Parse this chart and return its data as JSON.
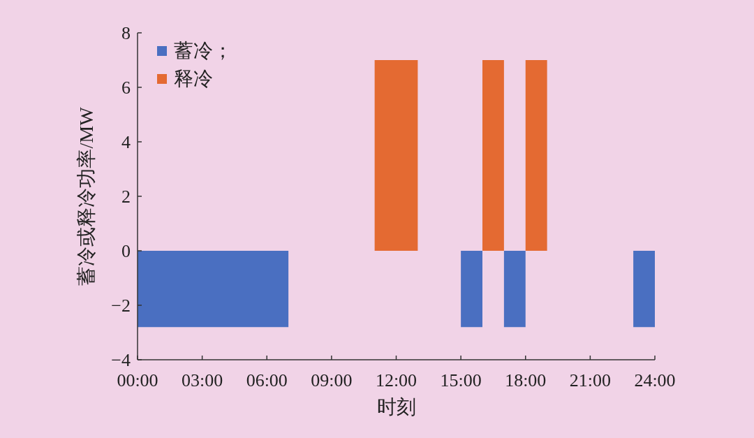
{
  "chart_data": {
    "type": "area",
    "xlabel": "时刻",
    "ylabel": "蓄冷或释冷功率/MW",
    "series": [
      {
        "name": "蓄冷；",
        "color": "#4a6fc1",
        "x": [
          0,
          7
        ],
        "values": [
          -2.8,
          -2.8
        ]
      },
      {
        "color": "#4a6fc1",
        "x": [
          15,
          16
        ],
        "values": [
          -2.8,
          -2.8
        ]
      },
      {
        "color": "#4a6fc1",
        "x": [
          17,
          18
        ],
        "values": [
          -2.8,
          -2.8
        ]
      },
      {
        "color": "#4a6fc1",
        "x": [
          23,
          24
        ],
        "values": [
          -2.8,
          -2.8
        ]
      },
      {
        "name": "释冷",
        "color": "#e46a32",
        "x": [
          11,
          13
        ],
        "values": [
          7,
          7
        ]
      },
      {
        "color": "#e46a32",
        "x": [
          16,
          17
        ],
        "values": [
          7,
          7
        ]
      },
      {
        "color": "#e46a32",
        "x": [
          18,
          19
        ],
        "values": [
          7,
          7
        ]
      }
    ],
    "xlim": [
      0,
      24
    ],
    "xticks": [
      {
        "value": 0,
        "label": "00:00"
      },
      {
        "value": 3,
        "label": "03:00"
      },
      {
        "value": 6,
        "label": "06:00"
      },
      {
        "value": 9,
        "label": "09:00"
      },
      {
        "value": 12,
        "label": "12:00"
      },
      {
        "value": 15,
        "label": "15:00"
      },
      {
        "value": 18,
        "label": "18:00"
      },
      {
        "value": 21,
        "label": "21:00"
      },
      {
        "value": 24,
        "label": "24:00"
      }
    ],
    "ylim": [
      -4,
      8
    ],
    "yticks": [
      -4,
      -2,
      0,
      2,
      4,
      6,
      8
    ],
    "legend": "top left"
  }
}
